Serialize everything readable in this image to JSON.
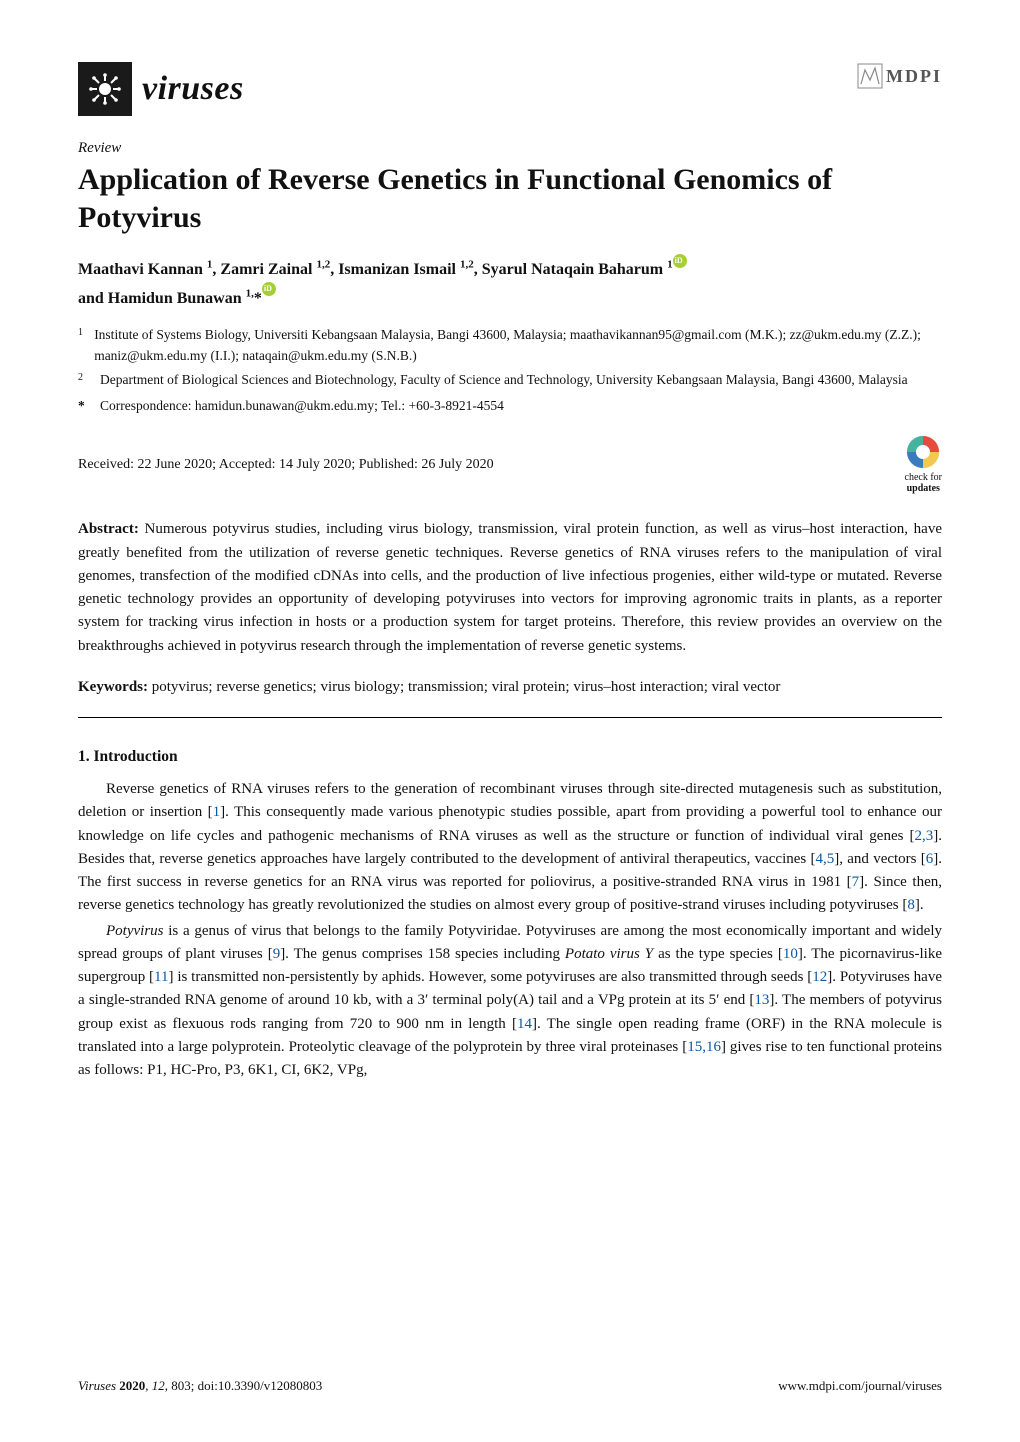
{
  "journal": {
    "name": "viruses",
    "publisher": "MDPI"
  },
  "article": {
    "type": "Review",
    "title": "Application of Reverse Genetics in Functional Genomics of Potyvirus"
  },
  "authors_line": "Maathavi Kannan ¹, Zamri Zainal ¹,², Ismanizan Ismail ¹,², Syarul Nataqain Baharum ¹",
  "authors_line2": "and Hamidun Bunawan ¹,*",
  "affiliations": [
    {
      "num": "1",
      "text": "Institute of Systems Biology, Universiti Kebangsaan Malaysia, Bangi 43600, Malaysia; maathavikannan95@gmail.com (M.K.); zz@ukm.edu.my (Z.Z.); maniz@ukm.edu.my (I.I.); nataqain@ukm.edu.my (S.N.B.)"
    },
    {
      "num": "2",
      "text": "Department of Biological Sciences and Biotechnology, Faculty of Science and Technology, University Kebangsaan Malaysia, Bangi 43600, Malaysia"
    }
  ],
  "correspondence": {
    "mark": "*",
    "text": "Correspondence: hamidun.bunawan@ukm.edu.my; Tel.: +60-3-8921-4554"
  },
  "dates": "Received: 22 June 2020; Accepted: 14 July 2020; Published: 26 July 2020",
  "check_updates": {
    "line1": "check for",
    "line2": "updates"
  },
  "abstract": {
    "label": "Abstract:",
    "text": "Numerous potyvirus studies, including virus biology, transmission, viral protein function, as well as virus–host interaction, have greatly benefited from the utilization of reverse genetic techniques. Reverse genetics of RNA viruses refers to the manipulation of viral genomes, transfection of the modified cDNAs into cells, and the production of live infectious progenies, either wild-type or mutated. Reverse genetic technology provides an opportunity of developing potyviruses into vectors for improving agronomic traits in plants, as a reporter system for tracking virus infection in hosts or a production system for target proteins. Therefore, this review provides an overview on the breakthroughs achieved in potyvirus research through the implementation of reverse genetic systems."
  },
  "keywords": {
    "label": "Keywords:",
    "text": "potyvirus; reverse genetics; virus biology; transmission; viral protein; virus–host interaction; viral vector"
  },
  "section": {
    "number": "1.",
    "title": "Introduction"
  },
  "paragraphs": [
    "Reverse genetics of RNA viruses refers to the generation of recombinant viruses through site-directed mutagenesis such as substitution, deletion or insertion [1]. This consequently made various phenotypic studies possible, apart from providing a powerful tool to enhance our knowledge on life cycles and pathogenic mechanisms of RNA viruses as well as the structure or function of individual viral genes [2,3]. Besides that, reverse genetics approaches have largely contributed to the development of antiviral therapeutics, vaccines [4,5], and vectors [6]. The first success in reverse genetics for an RNA virus was reported for poliovirus, a positive-stranded RNA virus in 1981 [7]. Since then, reverse genetics technology has greatly revolutionized the studies on almost every group of positive-strand viruses including potyviruses [8].",
    "Potyvirus is a genus of virus that belongs to the family Potyviridae. Potyviruses are among the most economically important and widely spread groups of plant viruses [9]. The genus comprises 158 species including Potato virus Y as the type species [10]. The picornavirus-like supergroup [11] is transmitted non-persistently by aphids. However, some potyviruses are also transmitted through seeds [12]. Potyviruses have a single-stranded RNA genome of around 10 kb, with a 3′ terminal poly(A) tail and a VPg protein at its 5′ end [13]. The members of potyvirus group exist as flexuous rods ranging from 720 to 900 nm in length [14]. The single open reading frame (ORF) in the RNA molecule is translated into a large polyprotein. Proteolytic cleavage of the polyprotein by three viral proteinases [15,16] gives rise to ten functional proteins as follows: P1, HC-Pro, P3, 6K1, CI, 6K2, VPg,"
  ],
  "footer": {
    "left": "Viruses 2020, 12, 803; doi:10.3390/v12080803",
    "right": "www.mdpi.com/journal/viruses"
  },
  "colors": {
    "ref_link": "#0b57a4",
    "orcid": "#a6ce39",
    "cu_red": "#e84b3c",
    "cu_teal": "#45b3a0",
    "cu_yellow": "#f2c94c",
    "cu_blue": "#3a7bbf"
  }
}
